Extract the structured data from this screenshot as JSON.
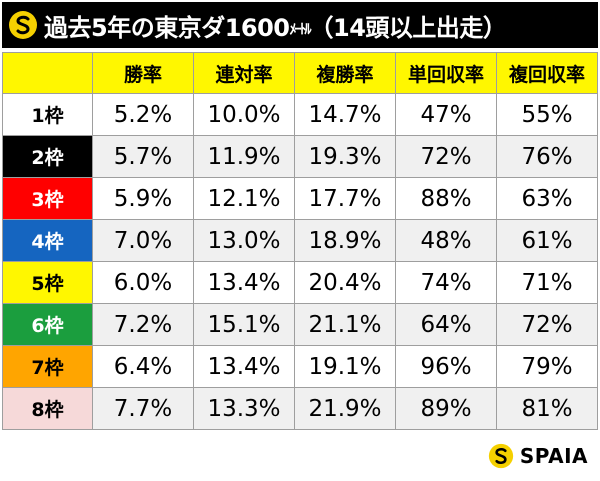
{
  "title": {
    "main": "過去5年の東京ダ1600",
    "unit": "ﾒｰﾄﾙ",
    "condition": "（14頭以上出走）"
  },
  "table": {
    "headers": [
      "",
      "勝率",
      "連対率",
      "複勝率",
      "単回収率",
      "複回収率"
    ],
    "rows": [
      {
        "gate": "1枠",
        "bg": "#ffffff",
        "fg": "#000000",
        "values": [
          "5.2%",
          "10.0%",
          "14.7%",
          "47%",
          "55%"
        ]
      },
      {
        "gate": "2枠",
        "bg": "#000000",
        "fg": "#ffffff",
        "values": [
          "5.7%",
          "11.9%",
          "19.3%",
          "72%",
          "76%"
        ]
      },
      {
        "gate": "3枠",
        "bg": "#ff0000",
        "fg": "#ffffff",
        "values": [
          "5.9%",
          "12.1%",
          "17.7%",
          "88%",
          "63%"
        ]
      },
      {
        "gate": "4枠",
        "bg": "#1565c0",
        "fg": "#ffffff",
        "values": [
          "7.0%",
          "13.0%",
          "18.9%",
          "48%",
          "61%"
        ]
      },
      {
        "gate": "5枠",
        "bg": "#fff700",
        "fg": "#000000",
        "values": [
          "6.0%",
          "13.4%",
          "20.4%",
          "74%",
          "71%"
        ]
      },
      {
        "gate": "6枠",
        "bg": "#1b9e3e",
        "fg": "#ffffff",
        "values": [
          "7.2%",
          "15.1%",
          "21.1%",
          "64%",
          "72%"
        ]
      },
      {
        "gate": "7枠",
        "bg": "#ffa500",
        "fg": "#000000",
        "values": [
          "6.4%",
          "13.4%",
          "19.1%",
          "96%",
          "79%"
        ]
      },
      {
        "gate": "8枠",
        "bg": "#f6d9d9",
        "fg": "#000000",
        "values": [
          "7.7%",
          "13.3%",
          "21.9%",
          "89%",
          "81%"
        ]
      }
    ]
  },
  "brand": {
    "name": "SPAIA",
    "logo_icon": "spaia-logo-icon",
    "logo_color": "#f5d000"
  }
}
